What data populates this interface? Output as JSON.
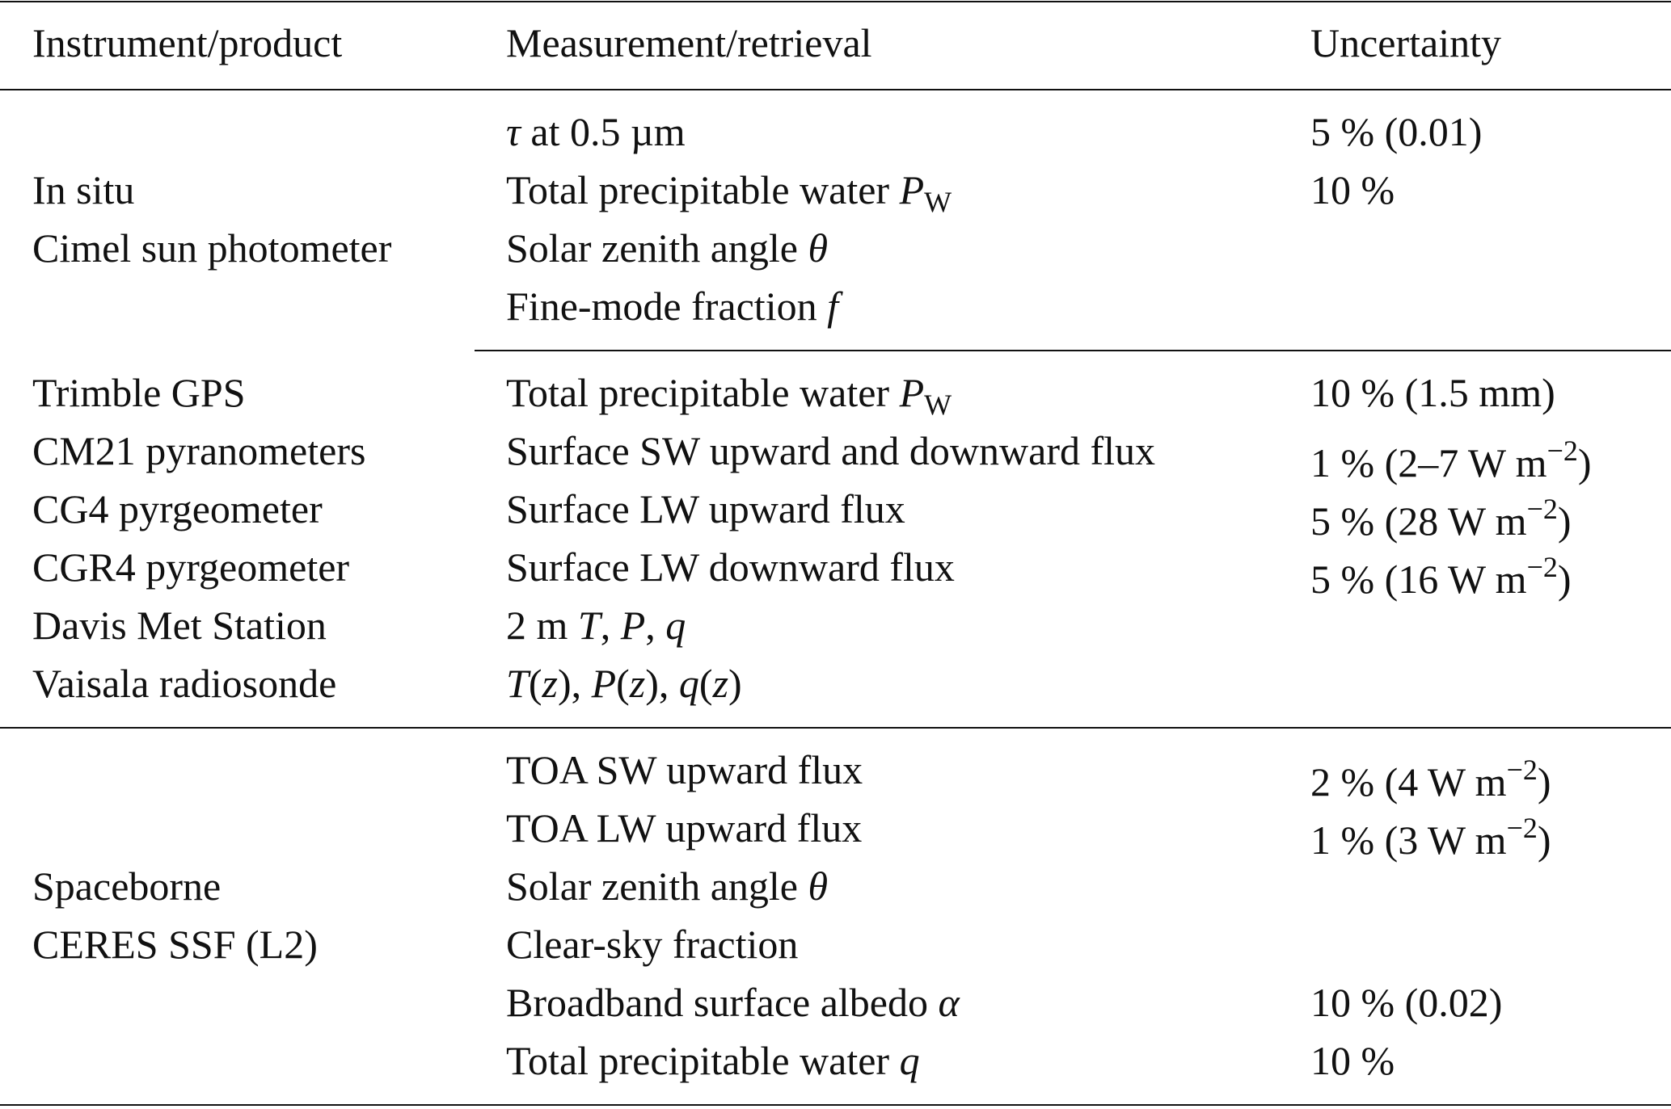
{
  "table": {
    "header": [
      "Instrument/product",
      "Measurement/retrieval",
      "Uncertainty"
    ],
    "groups": [
      {
        "rows": [
          [
            null,
            [
              {
                "text": "τ",
                "style": "i"
              },
              " at 0.5 µm"
            ],
            "5 % (0.01)"
          ],
          [
            "In situ",
            [
              "Total precipitable water ",
              {
                "text": "P",
                "style": "i"
              },
              {
                "text": "W",
                "style": "sub"
              }
            ],
            "10 %"
          ],
          [
            "Cimel sun photometer",
            [
              "Solar zenith angle ",
              {
                "text": "θ",
                "style": "i"
              }
            ],
            null
          ],
          [
            null,
            [
              "Fine-mode fraction ",
              {
                "text": "f",
                "style": "i"
              }
            ],
            null
          ]
        ]
      },
      {
        "rows": [
          [
            "Trimble GPS",
            [
              "Total precipitable water ",
              {
                "text": "P",
                "style": "i"
              },
              {
                "text": "W",
                "style": "sub"
              }
            ],
            "10 % (1.5 mm)"
          ],
          [
            "CM21 pyranometers",
            "Surface SW upward and downward flux",
            [
              "1 % (2–7 W m",
              {
                "text": "−2",
                "style": "sup"
              },
              ")"
            ]
          ],
          [
            "CG4 pyrgeometer",
            "Surface LW upward flux",
            [
              "5 % (28 W m",
              {
                "text": "−2",
                "style": "sup"
              },
              ")"
            ]
          ],
          [
            "CGR4 pyrgeometer",
            "Surface LW downward flux",
            [
              "5 % (16 W m",
              {
                "text": "−2",
                "style": "sup"
              },
              ")"
            ]
          ],
          [
            "Davis Met Station",
            [
              "2 m ",
              {
                "text": "T",
                "style": "i"
              },
              ", ",
              {
                "text": "P",
                "style": "i"
              },
              ", ",
              {
                "text": "q",
                "style": "i"
              }
            ],
            null
          ],
          [
            "Vaisala radiosonde",
            [
              {
                "text": "T",
                "style": "i"
              },
              "(",
              {
                "text": "z",
                "style": "i"
              },
              "), ",
              {
                "text": "P",
                "style": "i"
              },
              "(",
              {
                "text": "z",
                "style": "i"
              },
              "), ",
              {
                "text": "q",
                "style": "i"
              },
              "(",
              {
                "text": "z",
                "style": "i"
              },
              ")"
            ],
            null
          ]
        ]
      },
      {
        "rows": [
          [
            null,
            "TOA SW upward flux",
            [
              "2 % (4 W m",
              {
                "text": "−2",
                "style": "sup"
              },
              ")"
            ]
          ],
          [
            null,
            "TOA LW upward flux",
            [
              "1 % (3 W m",
              {
                "text": "−2",
                "style": "sup"
              },
              ")"
            ]
          ],
          [
            "Spaceborne",
            [
              "Solar zenith angle ",
              {
                "text": "θ",
                "style": "i"
              }
            ],
            null
          ],
          [
            "CERES SSF (L2)",
            "Clear-sky fraction",
            null
          ],
          [
            null,
            [
              "Broadband surface albedo ",
              {
                "text": "α",
                "style": "i"
              }
            ],
            "10 % (0.02)"
          ],
          [
            null,
            [
              "Total precipitable water ",
              {
                "text": "q",
                "style": "i"
              }
            ],
            "10 %"
          ]
        ]
      }
    ]
  }
}
